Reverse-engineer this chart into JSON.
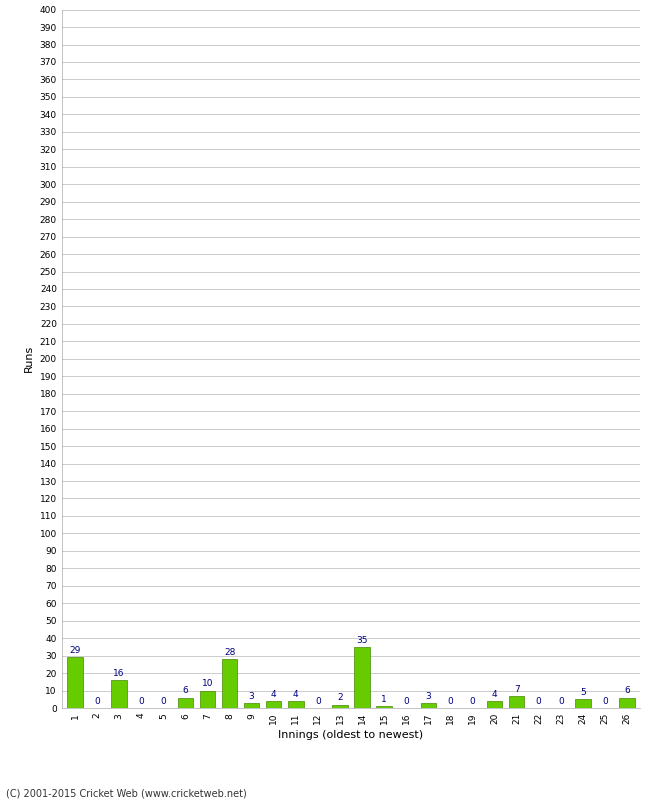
{
  "xlabel": "Innings (oldest to newest)",
  "ylabel": "Runs",
  "categories": [
    "1",
    "2",
    "3",
    "4",
    "5",
    "6",
    "7",
    "8",
    "9",
    "10",
    "11",
    "12",
    "13",
    "14",
    "15",
    "16",
    "17",
    "18",
    "19",
    "20",
    "21",
    "22",
    "23",
    "24",
    "25",
    "26"
  ],
  "values": [
    29,
    0,
    16,
    0,
    0,
    6,
    10,
    28,
    3,
    4,
    4,
    0,
    2,
    35,
    1,
    0,
    3,
    0,
    0,
    4,
    7,
    0,
    0,
    5,
    0,
    6
  ],
  "bar_color": "#66cc00",
  "bar_edge_color": "#448800",
  "label_color": "#000080",
  "background_color": "#ffffff",
  "grid_color": "#cccccc",
  "ylim": [
    0,
    400
  ],
  "footer": "(C) 2001-2015 Cricket Web (www.cricketweb.net)"
}
